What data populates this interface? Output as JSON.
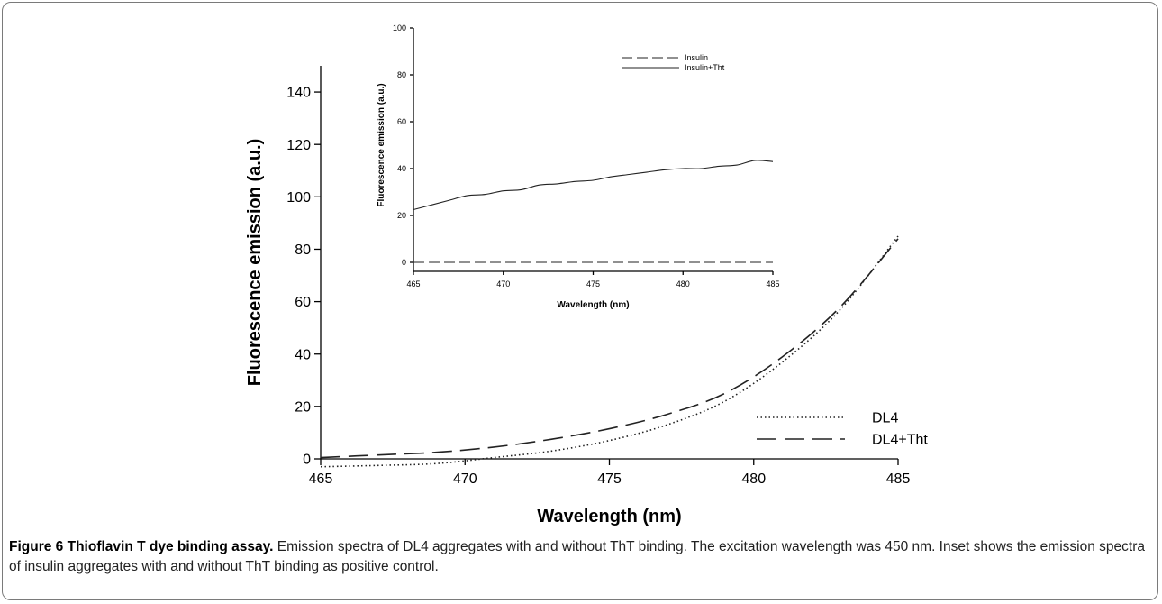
{
  "caption": {
    "label": "Figure 6",
    "title": "Thioflavin T dye binding assay.",
    "text": "Emission spectra of DL4 aggregates with and without ThT binding. The excitation wavelength was 450 nm. Inset shows the emission spectra of insulin aggregates with and without ThT binding as positive control."
  },
  "chart_data": [
    {
      "type": "line",
      "title": "",
      "xlabel": "Wavelength (nm)",
      "ylabel": "Fluorescence emission (a.u.)",
      "xlim": [
        465,
        485
      ],
      "ylim": [
        0,
        150
      ],
      "xticks": [
        465,
        470,
        475,
        480,
        485
      ],
      "yticks": [
        0,
        20,
        40,
        60,
        80,
        100,
        120,
        140
      ],
      "x": [
        465,
        467,
        469,
        471,
        473,
        475,
        477,
        479,
        481,
        483,
        485
      ],
      "legend_position": "bottom-right",
      "series": [
        {
          "name": "DL4",
          "style": "dotted",
          "values": [
            -3,
            -2.5,
            -1.8,
            0.5,
            3,
            7,
            13,
            22,
            37,
            57,
            85
          ]
        },
        {
          "name": "DL4+Tht",
          "style": "dashed",
          "values": [
            0.5,
            1.5,
            2.5,
            4.5,
            7.5,
            11.5,
            17,
            25,
            39,
            58,
            84
          ]
        }
      ]
    },
    {
      "type": "line",
      "title": "",
      "xlabel": "Wavelength (nm)",
      "ylabel": "Fluorescence emission (a.u.)",
      "xlim": [
        465,
        485
      ],
      "ylim": [
        0,
        100
      ],
      "xticks": [
        465,
        470,
        475,
        480,
        485
      ],
      "yticks": [
        0,
        20,
        40,
        60,
        80,
        100
      ],
      "x": [
        465,
        466,
        467,
        468,
        469,
        470,
        471,
        472,
        473,
        474,
        475,
        476,
        477,
        478,
        479,
        480,
        481,
        482,
        483,
        484,
        485
      ],
      "legend_position": "top-right",
      "series": [
        {
          "name": "Insulin",
          "style": "dashed",
          "values": [
            0,
            0,
            0,
            0,
            0,
            0,
            0,
            0,
            0,
            0,
            0,
            0,
            0,
            0,
            0,
            0,
            0,
            0,
            0,
            0,
            0
          ]
        },
        {
          "name": "Insulin+Tht",
          "style": "solid",
          "values": [
            22.5,
            24.5,
            26.5,
            28.5,
            29,
            30.5,
            31,
            33,
            33.5,
            34.5,
            35,
            36.5,
            37.5,
            38.5,
            39.5,
            40,
            40,
            41,
            41.5,
            43.5,
            43
          ]
        }
      ]
    }
  ]
}
